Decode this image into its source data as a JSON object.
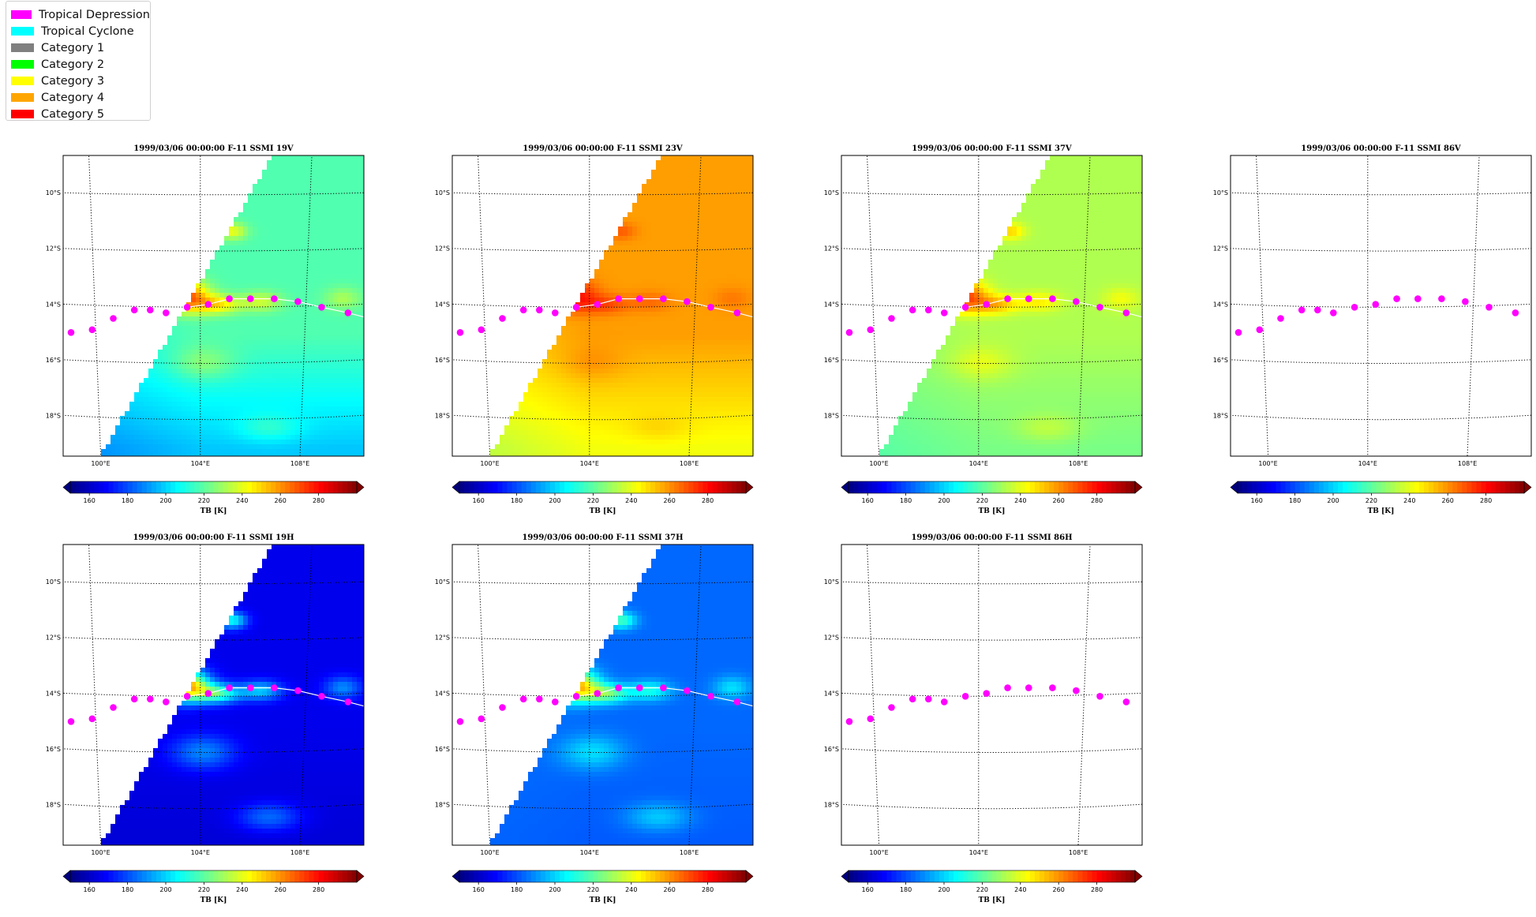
{
  "legend": {
    "items": [
      {
        "label": "Tropical Depression",
        "color": "#ff00ff"
      },
      {
        "label": "Tropical Cyclone",
        "color": "#00ffff"
      },
      {
        "label": "Category 1",
        "color": "#808080"
      },
      {
        "label": "Category 2",
        "color": "#00ff00"
      },
      {
        "label": "Category 3",
        "color": "#ffff00"
      },
      {
        "label": "Category 4",
        "color": "#ffa500"
      },
      {
        "label": "Category 5",
        "color": "#ff0000"
      }
    ]
  },
  "chart_data": {
    "type": "heatmap",
    "colorbar": {
      "label": "TB [K]",
      "ticks": [
        160,
        180,
        200,
        220,
        240,
        260,
        280
      ],
      "range": [
        150,
        300
      ],
      "colormap": "jet",
      "extend": "both"
    },
    "map": {
      "lon_range": [
        98.8,
        110.2
      ],
      "lat_range": [
        -19.3,
        -8.6
      ],
      "lon_ticks": [
        {
          "value": 100,
          "label": "100°E"
        },
        {
          "value": 104,
          "label": "104°E"
        },
        {
          "value": 108,
          "label": "108°E"
        }
      ],
      "lat_ticks": [
        {
          "value": -10,
          "label": "10°S"
        },
        {
          "value": -12,
          "label": "12°S"
        },
        {
          "value": -14,
          "label": "14°S"
        },
        {
          "value": -16,
          "label": "16°S"
        },
        {
          "value": -18,
          "label": "18°S"
        }
      ],
      "grid": "dotted"
    },
    "track": {
      "category": "Tropical Depression",
      "color": "#ff00ff",
      "points": [
        {
          "lon": 99.1,
          "lat": -14.9
        },
        {
          "lon": 99.9,
          "lat": -14.8
        },
        {
          "lon": 100.7,
          "lat": -14.4
        },
        {
          "lon": 101.5,
          "lat": -14.1
        },
        {
          "lon": 102.1,
          "lat": -14.1
        },
        {
          "lon": 102.7,
          "lat": -14.2
        },
        {
          "lon": 103.5,
          "lat": -14.0
        },
        {
          "lon": 104.3,
          "lat": -13.9
        },
        {
          "lon": 105.1,
          "lat": -13.7
        },
        {
          "lon": 105.9,
          "lat": -13.7
        },
        {
          "lon": 106.8,
          "lat": -13.7
        },
        {
          "lon": 107.7,
          "lat": -13.8
        },
        {
          "lon": 108.6,
          "lat": -14.0
        },
        {
          "lon": 109.6,
          "lat": -14.2
        }
      ]
    },
    "panels": [
      {
        "title": "1999/03/06 00:00:00  F-11 SSMI 19V",
        "channel": "19V",
        "base_tb": 218,
        "west_tb": 208,
        "south_tb": 198,
        "storm_amp": 52,
        "has_data": true
      },
      {
        "title": "1999/03/06 00:00:00  F-11 SSMI 23V",
        "channel": "23V",
        "base_tb": 258,
        "west_tb": 248,
        "south_tb": 242,
        "storm_amp": 22,
        "has_data": true
      },
      {
        "title": "1999/03/06 00:00:00  F-11 SSMI 37V",
        "channel": "37V",
        "base_tb": 232,
        "west_tb": 226,
        "south_tb": 224,
        "storm_amp": 40,
        "has_data": true
      },
      {
        "title": "1999/03/06 00:00:00  F-11 SSMI 86V",
        "channel": "86V",
        "has_data": false
      },
      {
        "title": "1999/03/06 00:00:00  F-11 SSMI 19H",
        "channel": "19H",
        "base_tb": 166,
        "west_tb": 166,
        "south_tb": 163,
        "storm_amp": 92,
        "has_data": true
      },
      {
        "title": "1999/03/06 00:00:00  F-11 SSMI 37H",
        "channel": "37H",
        "base_tb": 184,
        "west_tb": 186,
        "south_tb": 182,
        "storm_amp": 72,
        "has_data": true
      },
      {
        "title": "1999/03/06 00:00:00  F-11 SSMI 86H",
        "channel": "86H",
        "has_data": false
      }
    ]
  }
}
